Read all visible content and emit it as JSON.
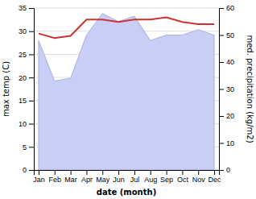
{
  "chart_data": {
    "type": "line",
    "xlabel": "date (month)",
    "ylabel": "max temp (C)",
    "y2label": "med. precipitation (kg/m2)",
    "categories": [
      "Jan",
      "Feb",
      "Mar",
      "Apr",
      "May",
      "Jun",
      "Jul",
      "Aug",
      "Sep",
      "Oct",
      "Nov",
      "Dec"
    ],
    "series": [
      {
        "type": "area",
        "axis": "y2",
        "color": "#c8cef5",
        "values": [
          48,
          33,
          34,
          50,
          58,
          55,
          57,
          48,
          50,
          50,
          52,
          50
        ]
      },
      {
        "type": "line",
        "color": "#cc3333",
        "values": [
          29.5,
          28.5,
          29.0,
          32.5,
          32.5,
          32.0,
          32.5,
          32.5,
          33.0,
          32.0,
          31.5,
          31.5
        ]
      }
    ],
    "ylim": [
      0,
      35
    ],
    "yticks": [
      0,
      5,
      10,
      15,
      20,
      25,
      30,
      35
    ],
    "y2lim": [
      0,
      60
    ],
    "y2ticks": [
      0,
      10,
      20,
      30,
      40,
      50,
      60
    ],
    "grid": true
  }
}
